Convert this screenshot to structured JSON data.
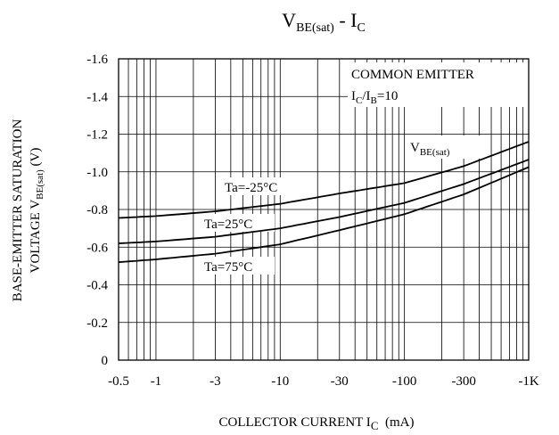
{
  "chart_data": {
    "type": "line",
    "title_main": "V",
    "title_main_sub": "BE(sat)",
    "title_sep": " - ",
    "title_i": "I",
    "title_i_sub": "C",
    "xlabel_text": "COLLECTOR CURRENT I",
    "xlabel_sub": "C",
    "xlabel_unit": "(mA)",
    "ylabel_line1": "BASE-EMITTER SATURATION",
    "ylabel_line2_pre": "VOLTAGE V",
    "ylabel_line2_sub": "BE(sat)",
    "ylabel_line2_post": "(V)",
    "x_scale": "log",
    "x_abs_range": [
      0.5,
      1000
    ],
    "ylim": [
      0,
      -1.6
    ],
    "grid": true,
    "x_ticks": [
      {
        "value": 0.5,
        "label": "-0.5"
      },
      {
        "value": 1,
        "label": "-1"
      },
      {
        "value": 3,
        "label": "-3"
      },
      {
        "value": 10,
        "label": "-10"
      },
      {
        "value": 30,
        "label": "-30"
      },
      {
        "value": 100,
        "label": "-100"
      },
      {
        "value": 300,
        "label": "-300"
      },
      {
        "value": 1000,
        "label": "-1K"
      }
    ],
    "y_ticks": [
      {
        "value": 0,
        "label": "0"
      },
      {
        "value": -0.2,
        "label": "-0.2"
      },
      {
        "value": -0.4,
        "label": "-0.4"
      },
      {
        "value": -0.6,
        "label": "-0.6"
      },
      {
        "value": -0.8,
        "label": "-0.8"
      },
      {
        "value": -1.0,
        "label": "-1.0"
      },
      {
        "value": -1.2,
        "label": "-1.2"
      },
      {
        "value": -1.4,
        "label": "-1.4"
      },
      {
        "value": -1.6,
        "label": "-1.6"
      }
    ],
    "condition_line1": "COMMON EMITTER",
    "condition_line2_i": "I",
    "condition_line2_sub1": "C",
    "condition_line2_mid": "/I",
    "condition_line2_sub2": "B",
    "condition_line2_val": "=10",
    "curve_label_main": "V",
    "curve_label_sub": "BE(sat)",
    "series": [
      {
        "name": "Ta=-25°C",
        "points": [
          [
            0.5,
            -0.755
          ],
          [
            1,
            -0.765
          ],
          [
            3,
            -0.79
          ],
          [
            10,
            -0.83
          ],
          [
            30,
            -0.885
          ],
          [
            100,
            -0.94
          ],
          [
            300,
            -1.03
          ],
          [
            1000,
            -1.16
          ]
        ]
      },
      {
        "name": "Ta=25°C",
        "points": [
          [
            0.5,
            -0.62
          ],
          [
            1,
            -0.63
          ],
          [
            3,
            -0.655
          ],
          [
            10,
            -0.7
          ],
          [
            30,
            -0.76
          ],
          [
            100,
            -0.835
          ],
          [
            300,
            -0.935
          ],
          [
            1000,
            -1.065
          ]
        ]
      },
      {
        "name": "Ta=75°C",
        "points": [
          [
            0.5,
            -0.52
          ],
          [
            1,
            -0.535
          ],
          [
            3,
            -0.565
          ],
          [
            10,
            -0.615
          ],
          [
            30,
            -0.69
          ],
          [
            100,
            -0.775
          ],
          [
            300,
            -0.88
          ],
          [
            1000,
            -1.025
          ]
        ]
      }
    ]
  }
}
